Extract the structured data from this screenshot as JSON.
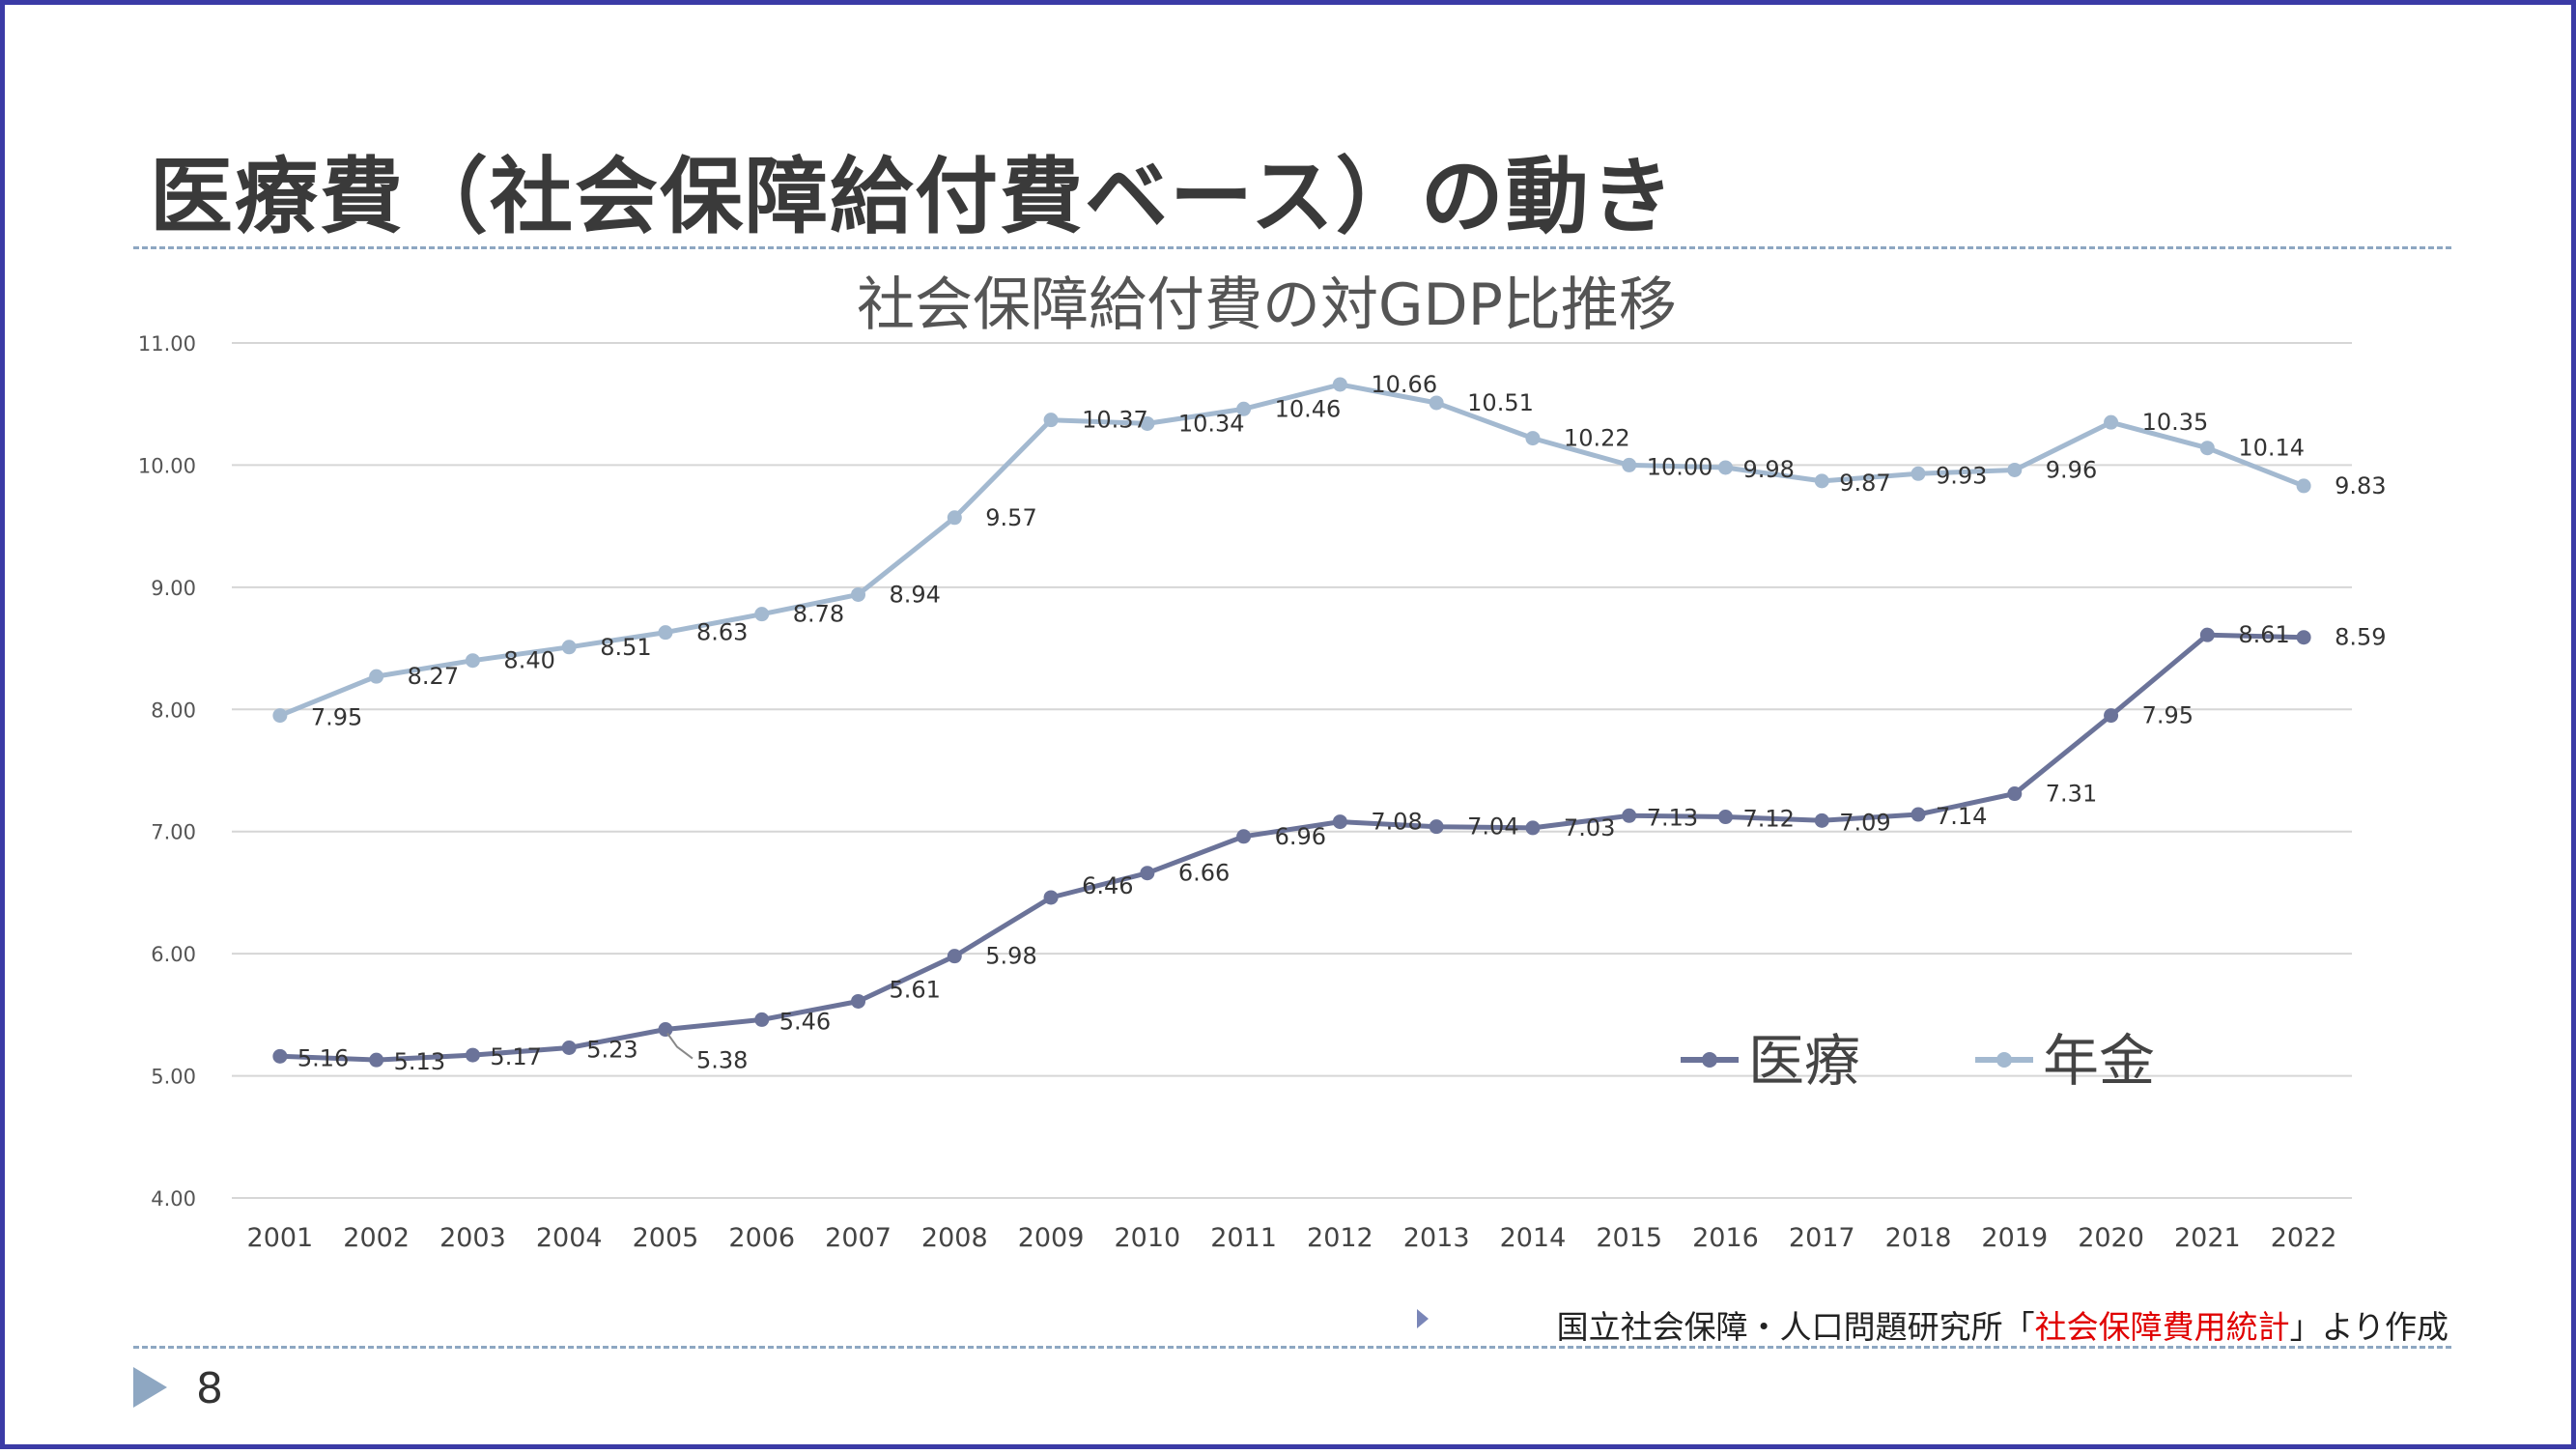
{
  "slide": {
    "title": "医療費（社会保障給付費ベース）の動き",
    "source_prefix": "国立社会保障・人口問題研究所「",
    "source_highlight": "社会保障費用統計",
    "source_suffix": "」より作成",
    "page_number": "8"
  },
  "chart_data": {
    "type": "line",
    "title": "社会保障給付費の対GDP比推移",
    "xlabel": "",
    "ylabel": "",
    "categories": [
      "2001",
      "2002",
      "2003",
      "2004",
      "2005",
      "2006",
      "2007",
      "2008",
      "2009",
      "2010",
      "2011",
      "2012",
      "2013",
      "2014",
      "2015",
      "2016",
      "2017",
      "2018",
      "2019",
      "2020",
      "2021",
      "2022"
    ],
    "y_ticks": [
      "4.00",
      "5.00",
      "6.00",
      "7.00",
      "8.00",
      "9.00",
      "10.00",
      "11.00"
    ],
    "ylim": [
      4,
      11
    ],
    "grid": true,
    "legend_position": "lower-right, inside plot",
    "series": [
      {
        "name": "医療",
        "color": "#6b7399",
        "values": [
          5.16,
          5.13,
          5.17,
          5.23,
          5.38,
          5.46,
          5.61,
          5.98,
          6.46,
          6.66,
          6.96,
          7.08,
          7.04,
          7.03,
          7.13,
          7.12,
          7.09,
          7.14,
          7.31,
          7.95,
          8.61,
          8.59
        ],
        "labels": [
          "5.16",
          "5.13",
          "5.17",
          "5.23",
          "5.38",
          "5.46",
          "5.61",
          "5.98",
          "6.46",
          "6.66",
          "6.96",
          "7.08",
          "7.04",
          "7.03",
          "7.13",
          "7.12",
          "7.09",
          "7.14",
          "7.31",
          "7.95",
          "8.61",
          "8.59"
        ]
      },
      {
        "name": "年金",
        "color": "#a3b9d0",
        "values": [
          7.95,
          8.27,
          8.4,
          8.51,
          8.63,
          8.78,
          8.94,
          9.57,
          10.37,
          10.34,
          10.46,
          10.66,
          10.51,
          10.22,
          10.0,
          9.98,
          9.87,
          9.93,
          9.96,
          10.35,
          10.14,
          9.83
        ],
        "labels": [
          "7.95",
          "8.27",
          "8.40",
          "8.51",
          "8.63",
          "8.78",
          "8.94",
          "9.57",
          "10.37",
          "10.34",
          "10.46",
          "10.66",
          "10.51",
          "10.22",
          "10.00",
          "9.98",
          "9.87",
          "9.93",
          "9.96",
          "10.35",
          "10.14",
          "9.83"
        ]
      }
    ]
  }
}
